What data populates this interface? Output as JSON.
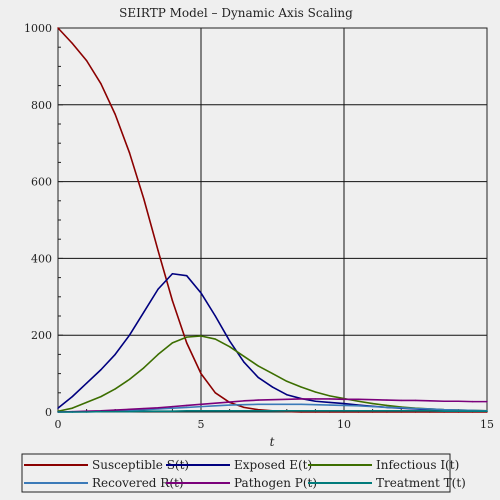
{
  "chart_data": {
    "type": "line",
    "title": "SEIRTP Model – Dynamic Axis Scaling",
    "xlabel": "t",
    "ylabel": "",
    "xlim": [
      0,
      15
    ],
    "ylim": [
      0,
      1000
    ],
    "xticks": [
      0,
      5,
      10,
      15
    ],
    "yticks": [
      0,
      200,
      400,
      600,
      800,
      1000
    ],
    "grid": true,
    "legend_position": "bottom",
    "x": [
      0,
      0.5,
      1,
      1.5,
      2,
      2.5,
      3,
      3.5,
      4,
      4.5,
      5,
      5.5,
      6,
      6.5,
      7,
      7.5,
      8,
      8.5,
      9,
      9.5,
      10,
      10.5,
      11,
      11.5,
      12,
      12.5,
      13,
      13.5,
      14,
      14.5,
      15
    ],
    "series": [
      {
        "name": "Susceptible S(t)",
        "color": "#8b0000",
        "values": [
          1000,
          960,
          915,
          855,
          775,
          675,
          555,
          420,
          290,
          180,
          100,
          50,
          25,
          12,
          6,
          3,
          1,
          0,
          0,
          0,
          0,
          0,
          0,
          0,
          0,
          0,
          0,
          0,
          0,
          0,
          0
        ]
      },
      {
        "name": "Exposed E(t)",
        "color": "#00007f",
        "values": [
          10,
          40,
          75,
          110,
          150,
          200,
          260,
          320,
          360,
          355,
          310,
          250,
          185,
          130,
          90,
          65,
          45,
          35,
          28,
          25,
          22,
          18,
          15,
          12,
          10,
          8,
          6,
          5,
          4,
          3,
          2
        ]
      },
      {
        "name": "Infectious I(t)",
        "color": "#3c6e00",
        "values": [
          2,
          10,
          25,
          40,
          60,
          85,
          115,
          150,
          180,
          195,
          198,
          190,
          170,
          145,
          120,
          100,
          80,
          65,
          52,
          42,
          35,
          28,
          22,
          17,
          13,
          10,
          8,
          6,
          5,
          4,
          3
        ]
      },
      {
        "name": "Recovered R(t)",
        "color": "#3b7ab8",
        "values": [
          0,
          0,
          1,
          2,
          3,
          4,
          6,
          8,
          10,
          12,
          14,
          16,
          18,
          19,
          20,
          20,
          20,
          20,
          19,
          18,
          17,
          16,
          14,
          12,
          11,
          9,
          8,
          6,
          5,
          4,
          3
        ]
      },
      {
        "name": "Pathogen P(t)",
        "color": "#7b007b",
        "values": [
          0,
          1,
          2,
          3,
          5,
          7,
          9,
          11,
          14,
          17,
          20,
          23,
          26,
          29,
          31,
          32,
          33,
          34,
          34,
          34,
          33,
          33,
          32,
          31,
          30,
          30,
          29,
          28,
          28,
          27,
          27
        ]
      },
      {
        "name": "Treatment T(t)",
        "color": "#007b7b",
        "values": [
          0,
          0,
          0,
          1,
          1,
          1,
          2,
          2,
          2,
          3,
          3,
          3,
          3,
          3,
          3,
          3,
          3,
          3,
          3,
          3,
          3,
          3,
          3,
          3,
          3,
          3,
          3,
          2,
          2,
          2,
          2
        ]
      }
    ]
  }
}
